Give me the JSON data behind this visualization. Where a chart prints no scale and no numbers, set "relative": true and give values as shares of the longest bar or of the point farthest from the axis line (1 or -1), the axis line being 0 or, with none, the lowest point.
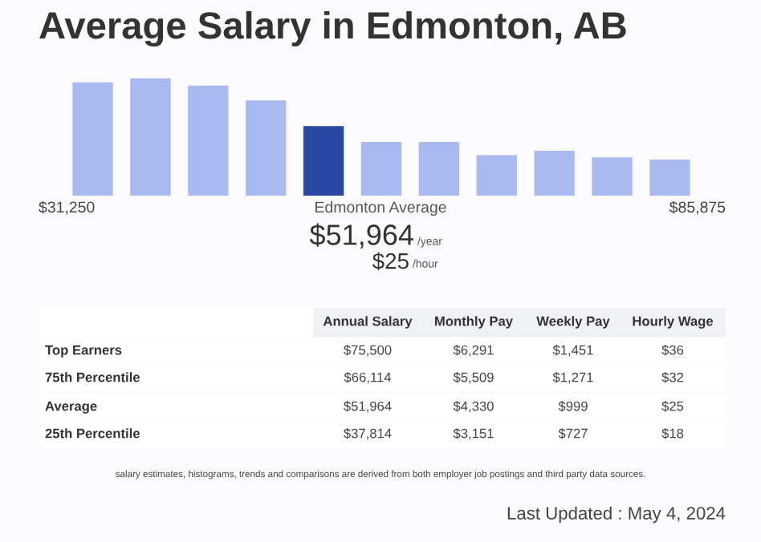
{
  "chart_data": [
    {
      "type": "bar",
      "title": "Average Salary in Edmonton, AB",
      "relative": true,
      "categories": [
        null,
        null,
        null,
        null,
        null,
        null,
        null,
        null,
        null,
        null,
        null
      ],
      "values": [
        0.967,
        1,
        0.939,
        0.813,
        0.593,
        0.458,
        0.458,
        0.346,
        0.383,
        0.327,
        0.308
      ],
      "colors": [
        "#a8baf0",
        "#a8baf0",
        "#a8baf0",
        "#a8baf0",
        "#2a47a3",
        "#a8baf0",
        "#a8baf0",
        "#a8baf0",
        "#a8baf0",
        "#a8baf0",
        "#a8baf0"
      ],
      "grid": false,
      "legend": false,
      "annotations": [
        "$31,250",
        "Edmonton Average",
        "$85,875",
        "$51,964",
        "/year",
        "$25",
        "/hour"
      ]
    },
    {
      "type": "other",
      "categories": [
        "Annual Salary",
        "Monthly Pay",
        "Weekly Pay",
        "Hourly Wage"
      ],
      "y_categories": [
        "Top Earners",
        "75th Percentile",
        "Average",
        "25th Percentile"
      ],
      "cell_labels": [
        [
          "$75,500",
          "$6,291",
          "$1,451",
          "$36"
        ],
        [
          "$66,114",
          "$5,509",
          "$1,271",
          "$32"
        ],
        [
          "$51,964",
          "$4,330",
          "$999",
          "$25"
        ],
        [
          "$37,814",
          "$3,151",
          "$727",
          "$18"
        ]
      ],
      "annotations": [
        "salary estimates, histograms, trends and comparisons are derived from both employer job postings and third party data sources.",
        "Last Updated : May 4, 2024"
      ]
    }
  ]
}
